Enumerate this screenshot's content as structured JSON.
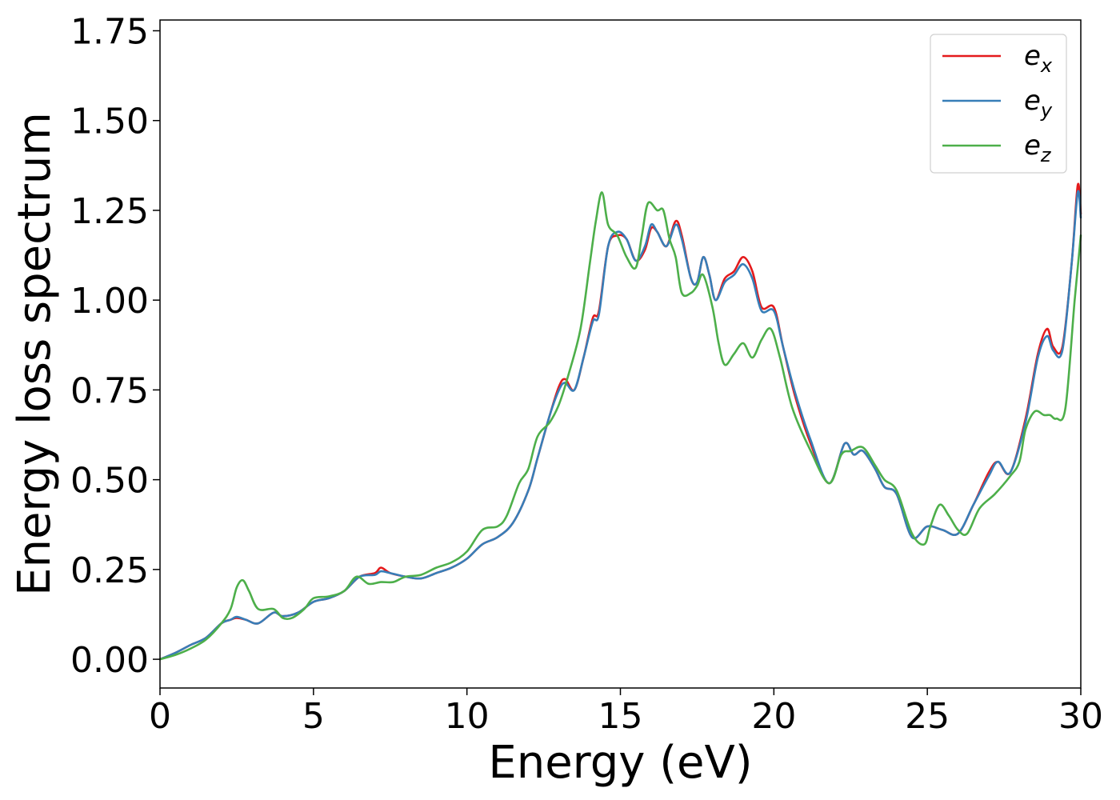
{
  "chart_data": {
    "type": "line",
    "title": "",
    "xlabel": "Energy (eV)",
    "ylabel": "Energy loss spectrum",
    "xlim": [
      0,
      30
    ],
    "ylim": [
      -0.08,
      1.78
    ],
    "xticks": [
      0,
      5,
      10,
      15,
      20,
      25,
      30
    ],
    "yticks": [
      0.0,
      0.25,
      0.5,
      0.75,
      1.0,
      1.25,
      1.5,
      1.75
    ],
    "xtick_labels": [
      "0",
      "5",
      "10",
      "15",
      "20",
      "25",
      "30"
    ],
    "ytick_labels": [
      "0.00",
      "0.25",
      "0.50",
      "0.75",
      "1.00",
      "1.25",
      "1.50",
      "1.75"
    ],
    "grid": false,
    "legend_position": "top-right",
    "series": [
      {
        "name": "e_x",
        "label_base": "e",
        "label_sub": "x",
        "color": "#e41a1c",
        "points": [
          [
            0,
            0.0
          ],
          [
            0.5,
            0.018
          ],
          [
            1.0,
            0.04
          ],
          [
            1.5,
            0.06
          ],
          [
            2.0,
            0.1
          ],
          [
            2.3,
            0.11
          ],
          [
            2.5,
            0.115
          ],
          [
            2.8,
            0.11
          ],
          [
            3.2,
            0.1
          ],
          [
            3.7,
            0.13
          ],
          [
            4.0,
            0.12
          ],
          [
            4.5,
            0.13
          ],
          [
            5.0,
            0.16
          ],
          [
            5.5,
            0.17
          ],
          [
            6.0,
            0.19
          ],
          [
            6.5,
            0.23
          ],
          [
            7.0,
            0.24
          ],
          [
            7.2,
            0.255
          ],
          [
            7.5,
            0.24
          ],
          [
            8.0,
            0.23
          ],
          [
            8.5,
            0.225
          ],
          [
            9.0,
            0.24
          ],
          [
            9.5,
            0.255
          ],
          [
            10.0,
            0.28
          ],
          [
            10.5,
            0.32
          ],
          [
            11.0,
            0.34
          ],
          [
            11.5,
            0.38
          ],
          [
            12.0,
            0.47
          ],
          [
            12.3,
            0.56
          ],
          [
            12.7,
            0.68
          ],
          [
            13.0,
            0.76
          ],
          [
            13.2,
            0.78
          ],
          [
            13.5,
            0.75
          ],
          [
            13.8,
            0.84
          ],
          [
            14.1,
            0.95
          ],
          [
            14.3,
            0.97
          ],
          [
            14.6,
            1.15
          ],
          [
            14.9,
            1.18
          ],
          [
            15.2,
            1.17
          ],
          [
            15.5,
            1.11
          ],
          [
            15.8,
            1.14
          ],
          [
            16.0,
            1.2
          ],
          [
            16.2,
            1.19
          ],
          [
            16.5,
            1.15
          ],
          [
            16.8,
            1.22
          ],
          [
            17.0,
            1.18
          ],
          [
            17.3,
            1.06
          ],
          [
            17.5,
            1.05
          ],
          [
            17.7,
            1.12
          ],
          [
            17.9,
            1.07
          ],
          [
            18.1,
            1.0
          ],
          [
            18.4,
            1.06
          ],
          [
            18.7,
            1.08
          ],
          [
            19.0,
            1.12
          ],
          [
            19.3,
            1.08
          ],
          [
            19.6,
            0.98
          ],
          [
            20.0,
            0.98
          ],
          [
            20.3,
            0.87
          ],
          [
            20.7,
            0.73
          ],
          [
            21.2,
            0.6
          ],
          [
            21.8,
            0.49
          ],
          [
            22.3,
            0.6
          ],
          [
            22.6,
            0.57
          ],
          [
            22.9,
            0.58
          ],
          [
            23.3,
            0.53
          ],
          [
            23.6,
            0.48
          ],
          [
            24.0,
            0.46
          ],
          [
            24.5,
            0.34
          ],
          [
            25.0,
            0.37
          ],
          [
            25.5,
            0.36
          ],
          [
            26.0,
            0.35
          ],
          [
            26.5,
            0.43
          ],
          [
            27.0,
            0.52
          ],
          [
            27.3,
            0.55
          ],
          [
            27.7,
            0.52
          ],
          [
            28.2,
            0.67
          ],
          [
            28.6,
            0.85
          ],
          [
            28.9,
            0.92
          ],
          [
            29.1,
            0.87
          ],
          [
            29.4,
            0.87
          ],
          [
            29.7,
            1.1
          ],
          [
            29.9,
            1.32
          ],
          [
            30.0,
            1.24
          ]
        ]
      },
      {
        "name": "e_y",
        "label_base": "e",
        "label_sub": "y",
        "color": "#377eb8",
        "points": [
          [
            0,
            0.0
          ],
          [
            0.5,
            0.018
          ],
          [
            1.0,
            0.04
          ],
          [
            1.5,
            0.06
          ],
          [
            2.0,
            0.1
          ],
          [
            2.3,
            0.11
          ],
          [
            2.5,
            0.118
          ],
          [
            2.8,
            0.11
          ],
          [
            3.2,
            0.1
          ],
          [
            3.7,
            0.13
          ],
          [
            4.0,
            0.12
          ],
          [
            4.5,
            0.13
          ],
          [
            5.0,
            0.16
          ],
          [
            5.5,
            0.17
          ],
          [
            6.0,
            0.19
          ],
          [
            6.5,
            0.23
          ],
          [
            7.0,
            0.235
          ],
          [
            7.2,
            0.245
          ],
          [
            7.5,
            0.24
          ],
          [
            8.0,
            0.23
          ],
          [
            8.5,
            0.225
          ],
          [
            9.0,
            0.24
          ],
          [
            9.5,
            0.255
          ],
          [
            10.0,
            0.28
          ],
          [
            10.5,
            0.32
          ],
          [
            11.0,
            0.34
          ],
          [
            11.5,
            0.38
          ],
          [
            12.0,
            0.47
          ],
          [
            12.3,
            0.56
          ],
          [
            12.7,
            0.68
          ],
          [
            13.0,
            0.75
          ],
          [
            13.2,
            0.77
          ],
          [
            13.5,
            0.75
          ],
          [
            13.8,
            0.84
          ],
          [
            14.1,
            0.94
          ],
          [
            14.3,
            0.96
          ],
          [
            14.6,
            1.15
          ],
          [
            14.9,
            1.19
          ],
          [
            15.2,
            1.17
          ],
          [
            15.5,
            1.11
          ],
          [
            15.8,
            1.15
          ],
          [
            16.0,
            1.21
          ],
          [
            16.2,
            1.19
          ],
          [
            16.5,
            1.15
          ],
          [
            16.8,
            1.21
          ],
          [
            17.0,
            1.17
          ],
          [
            17.3,
            1.06
          ],
          [
            17.5,
            1.05
          ],
          [
            17.7,
            1.12
          ],
          [
            17.9,
            1.07
          ],
          [
            18.1,
            1.0
          ],
          [
            18.4,
            1.05
          ],
          [
            18.7,
            1.07
          ],
          [
            19.0,
            1.1
          ],
          [
            19.3,
            1.06
          ],
          [
            19.6,
            0.97
          ],
          [
            20.0,
            0.97
          ],
          [
            20.3,
            0.87
          ],
          [
            20.7,
            0.74
          ],
          [
            21.2,
            0.61
          ],
          [
            21.8,
            0.49
          ],
          [
            22.3,
            0.6
          ],
          [
            22.6,
            0.57
          ],
          [
            22.9,
            0.58
          ],
          [
            23.3,
            0.53
          ],
          [
            23.6,
            0.48
          ],
          [
            24.0,
            0.46
          ],
          [
            24.5,
            0.34
          ],
          [
            25.0,
            0.37
          ],
          [
            25.5,
            0.36
          ],
          [
            26.0,
            0.35
          ],
          [
            26.5,
            0.43
          ],
          [
            27.0,
            0.51
          ],
          [
            27.3,
            0.55
          ],
          [
            27.7,
            0.52
          ],
          [
            28.2,
            0.66
          ],
          [
            28.6,
            0.84
          ],
          [
            28.9,
            0.9
          ],
          [
            29.1,
            0.86
          ],
          [
            29.4,
            0.86
          ],
          [
            29.7,
            1.1
          ],
          [
            29.9,
            1.3
          ],
          [
            30.0,
            1.23
          ]
        ]
      },
      {
        "name": "e_z",
        "label_base": "e",
        "label_sub": "z",
        "color": "#4daf4a",
        "points": [
          [
            0,
            0.0
          ],
          [
            0.5,
            0.012
          ],
          [
            1.0,
            0.03
          ],
          [
            1.5,
            0.055
          ],
          [
            2.0,
            0.1
          ],
          [
            2.3,
            0.14
          ],
          [
            2.5,
            0.2
          ],
          [
            2.7,
            0.22
          ],
          [
            2.9,
            0.19
          ],
          [
            3.2,
            0.14
          ],
          [
            3.7,
            0.14
          ],
          [
            4.0,
            0.115
          ],
          [
            4.3,
            0.115
          ],
          [
            4.7,
            0.14
          ],
          [
            5.0,
            0.17
          ],
          [
            5.5,
            0.175
          ],
          [
            6.0,
            0.19
          ],
          [
            6.4,
            0.23
          ],
          [
            6.8,
            0.21
          ],
          [
            7.2,
            0.215
          ],
          [
            7.6,
            0.215
          ],
          [
            8.0,
            0.23
          ],
          [
            8.5,
            0.235
          ],
          [
            9.0,
            0.255
          ],
          [
            9.5,
            0.27
          ],
          [
            10.0,
            0.3
          ],
          [
            10.5,
            0.36
          ],
          [
            11.0,
            0.37
          ],
          [
            11.3,
            0.4
          ],
          [
            11.7,
            0.49
          ],
          [
            12.0,
            0.53
          ],
          [
            12.3,
            0.62
          ],
          [
            12.7,
            0.66
          ],
          [
            13.0,
            0.71
          ],
          [
            13.3,
            0.79
          ],
          [
            13.7,
            0.92
          ],
          [
            14.0,
            1.1
          ],
          [
            14.2,
            1.22
          ],
          [
            14.4,
            1.3
          ],
          [
            14.6,
            1.21
          ],
          [
            14.9,
            1.18
          ],
          [
            15.2,
            1.12
          ],
          [
            15.5,
            1.09
          ],
          [
            15.7,
            1.18
          ],
          [
            15.9,
            1.27
          ],
          [
            16.2,
            1.25
          ],
          [
            16.4,
            1.25
          ],
          [
            16.6,
            1.17
          ],
          [
            16.8,
            1.12
          ],
          [
            17.0,
            1.02
          ],
          [
            17.3,
            1.02
          ],
          [
            17.5,
            1.04
          ],
          [
            17.7,
            1.07
          ],
          [
            18.0,
            0.98
          ],
          [
            18.2,
            0.88
          ],
          [
            18.4,
            0.82
          ],
          [
            18.7,
            0.85
          ],
          [
            19.0,
            0.88
          ],
          [
            19.3,
            0.84
          ],
          [
            19.6,
            0.89
          ],
          [
            19.9,
            0.92
          ],
          [
            20.2,
            0.84
          ],
          [
            20.6,
            0.7
          ],
          [
            21.2,
            0.58
          ],
          [
            21.8,
            0.49
          ],
          [
            22.2,
            0.57
          ],
          [
            22.5,
            0.58
          ],
          [
            22.9,
            0.59
          ],
          [
            23.3,
            0.54
          ],
          [
            23.6,
            0.5
          ],
          [
            24.0,
            0.47
          ],
          [
            24.5,
            0.35
          ],
          [
            24.9,
            0.32
          ],
          [
            25.1,
            0.37
          ],
          [
            25.4,
            0.43
          ],
          [
            25.7,
            0.4
          ],
          [
            26.0,
            0.36
          ],
          [
            26.3,
            0.35
          ],
          [
            26.7,
            0.42
          ],
          [
            27.2,
            0.46
          ],
          [
            27.7,
            0.51
          ],
          [
            28.0,
            0.55
          ],
          [
            28.2,
            0.64
          ],
          [
            28.5,
            0.69
          ],
          [
            28.8,
            0.68
          ],
          [
            29.0,
            0.68
          ],
          [
            29.2,
            0.67
          ],
          [
            29.5,
            0.7
          ],
          [
            29.8,
            1.0
          ],
          [
            30.0,
            1.18
          ]
        ]
      }
    ]
  }
}
